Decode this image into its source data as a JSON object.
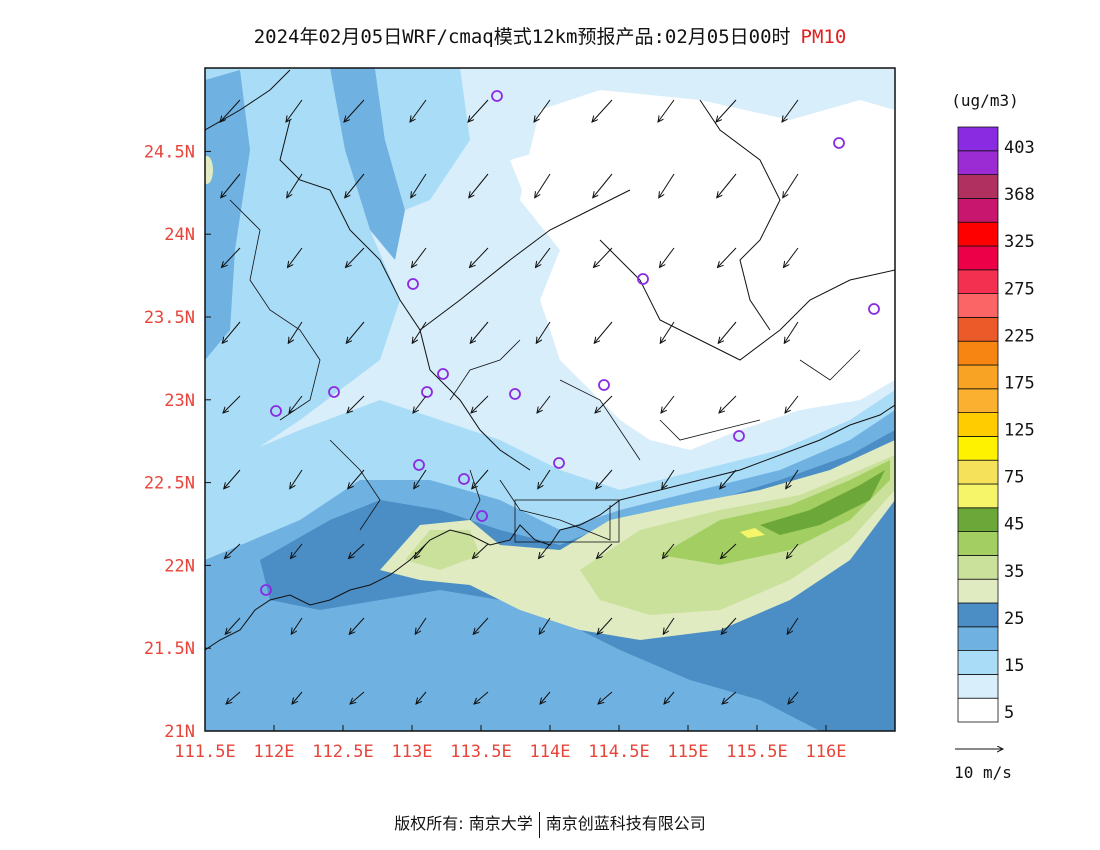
{
  "title": {
    "main": "2024年02月05日WRF/cmaq模式12km预报产品:02月05日00时",
    "pollutant": "PM10"
  },
  "map": {
    "lon_range": [
      111.5,
      116.5
    ],
    "lat_range": [
      21.0,
      25.0
    ],
    "lat_ticks": [
      "21N",
      "21.5N",
      "22N",
      "22.5N",
      "23N",
      "23.5N",
      "24N",
      "24.5N"
    ],
    "lon_ticks": [
      "111.5E",
      "112E",
      "112.5E",
      "113E",
      "113.5E",
      "114E",
      "114.5E",
      "115E",
      "115.5E",
      "116E"
    ],
    "tick_color": "#e8443a"
  },
  "legend": {
    "unit": "(ug/m3)",
    "labels": [
      "403",
      "368",
      "325",
      "275",
      "225",
      "175",
      "125",
      "75",
      "45",
      "35",
      "25",
      "15",
      "5"
    ],
    "colors": [
      "#ffffff",
      "#d9eefb",
      "#a9dcf6",
      "#6fb1e0",
      "#4b8ec6",
      "#e1ebc2",
      "#c9e19a",
      "#a3cf62",
      "#6ba839",
      "#f6f56a",
      "#f5e25a",
      "#fff200",
      "#ffcc00",
      "#fbb12f",
      "#f8a323",
      "#f68512",
      "#ec5a2a",
      "#fb6565",
      "#f3304f",
      "#ec0048",
      "#ff0000",
      "#c8156d",
      "#b03060",
      "#9b2bd2",
      "#8a2be2"
    ],
    "wind_ref": "10 m/s"
  },
  "stations_count": 16,
  "footer": {
    "left": "版权所有: 南京大学",
    "right": "南京创蓝科技有限公司"
  }
}
